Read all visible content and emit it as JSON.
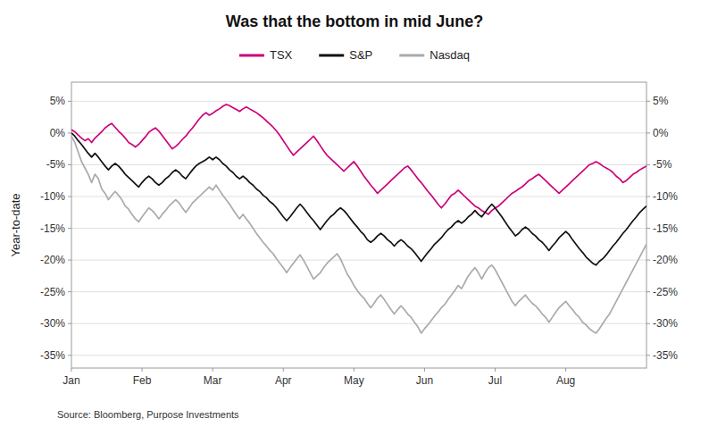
{
  "chart_data": {
    "type": "line",
    "title": "Was that the bottom in mid June?",
    "y_label": "Year-to-date",
    "annotations": [
      "Source: Bloomberg, Purpose Investments"
    ],
    "grid": true,
    "legend": "top",
    "categories": [
      "Jan",
      null,
      null,
      null,
      null,
      null,
      null,
      null,
      null,
      null,
      null,
      null,
      null,
      null,
      null,
      null,
      null,
      null,
      null,
      null,
      null,
      "Feb",
      null,
      null,
      null,
      null,
      null,
      null,
      null,
      null,
      null,
      null,
      null,
      null,
      null,
      null,
      null,
      null,
      null,
      null,
      null,
      null,
      "Mar",
      null,
      null,
      null,
      null,
      null,
      null,
      null,
      null,
      null,
      null,
      null,
      null,
      null,
      null,
      null,
      null,
      null,
      null,
      null,
      null,
      "Apr",
      null,
      null,
      null,
      null,
      null,
      null,
      null,
      null,
      null,
      null,
      null,
      null,
      null,
      null,
      null,
      null,
      null,
      null,
      null,
      null,
      "May",
      null,
      null,
      null,
      null,
      null,
      null,
      null,
      null,
      null,
      null,
      null,
      null,
      null,
      null,
      null,
      null,
      null,
      null,
      null,
      null,
      "Jun",
      null,
      null,
      null,
      null,
      null,
      null,
      null,
      null,
      null,
      null,
      null,
      null,
      null,
      null,
      null,
      null,
      null,
      null,
      null,
      null,
      "Jul",
      null,
      null,
      null,
      null,
      null,
      null,
      null,
      null,
      null,
      null,
      null,
      null,
      null,
      null,
      null,
      null,
      null,
      null,
      null,
      null,
      "Aug",
      null,
      null,
      null,
      null,
      null,
      null,
      null,
      null,
      null,
      null,
      null,
      null,
      null,
      null,
      null,
      null,
      null,
      null,
      null,
      null,
      null,
      null,
      null,
      null
    ],
    "ylim": [
      -37,
      8
    ],
    "yticks": [
      {
        "value": 5,
        "label": "5%"
      },
      {
        "value": 0,
        "label": "0%"
      },
      {
        "value": -5,
        "label": "-5%"
      },
      {
        "value": -10,
        "label": "-10%"
      },
      {
        "value": -15,
        "label": "-15%"
      },
      {
        "value": -20,
        "label": "-20%"
      },
      {
        "value": -25,
        "label": "-25%"
      },
      {
        "value": -30,
        "label": "-30%"
      },
      {
        "value": -35,
        "label": "-35%"
      }
    ],
    "y2lim": [
      -37,
      8
    ],
    "y2ticks": [
      {
        "value": 5,
        "label": "5%"
      },
      {
        "value": 0,
        "label": "0%"
      },
      {
        "value": -5,
        "label": "-5%"
      },
      {
        "value": -10,
        "label": "-10%"
      },
      {
        "value": -15,
        "label": "-15%"
      },
      {
        "value": -20,
        "label": "-20%"
      },
      {
        "value": -25,
        "label": "-25%"
      },
      {
        "value": -30,
        "label": "-30%"
      },
      {
        "value": -35,
        "label": "-35%"
      }
    ],
    "series": [
      {
        "name": "TSX",
        "color": "#cc007a",
        "values": [
          0.5,
          0.2,
          -0.3,
          -0.8,
          -1.2,
          -0.9,
          -1.5,
          -0.8,
          -0.3,
          0.2,
          0.8,
          1.2,
          1.5,
          0.9,
          0.3,
          -0.2,
          -0.8,
          -1.5,
          -1.8,
          -2.2,
          -1.8,
          -1.2,
          -0.6,
          0.1,
          0.5,
          0.8,
          0.3,
          -0.4,
          -1.1,
          -1.8,
          -2.5,
          -2.1,
          -1.6,
          -1.0,
          -0.5,
          0.2,
          0.8,
          1.5,
          2.2,
          2.8,
          3.2,
          2.8,
          3.1,
          3.5,
          3.8,
          4.2,
          4.5,
          4.3,
          4.0,
          3.7,
          3.4,
          3.8,
          4.1,
          3.8,
          3.5,
          3.2,
          2.8,
          2.4,
          1.9,
          1.4,
          0.9,
          0.3,
          -0.4,
          -1.2,
          -2.0,
          -2.8,
          -3.5,
          -3.0,
          -2.5,
          -2.0,
          -1.5,
          -1.0,
          -0.5,
          -1.2,
          -2.0,
          -2.8,
          -3.5,
          -4.0,
          -4.5,
          -5.0,
          -5.5,
          -6.0,
          -5.5,
          -5.0,
          -4.5,
          -5.2,
          -6.0,
          -6.8,
          -7.5,
          -8.2,
          -8.8,
          -9.5,
          -9.0,
          -8.5,
          -8.0,
          -7.5,
          -7.0,
          -6.5,
          -6.0,
          -5.5,
          -5.2,
          -5.8,
          -6.5,
          -7.2,
          -7.8,
          -8.5,
          -9.2,
          -9.8,
          -10.5,
          -11.2,
          -11.8,
          -11.2,
          -10.5,
          -9.8,
          -9.5,
          -9.0,
          -9.5,
          -10.0,
          -10.5,
          -11.0,
          -11.5,
          -11.8,
          -12.2,
          -12.5,
          -12.8,
          -12.2,
          -11.8,
          -11.5,
          -11.0,
          -10.5,
          -10.0,
          -9.5,
          -9.2,
          -8.8,
          -8.5,
          -8.0,
          -7.5,
          -7.2,
          -6.8,
          -6.5,
          -7.0,
          -7.5,
          -8.0,
          -8.5,
          -9.0,
          -9.5,
          -9.0,
          -8.5,
          -8.0,
          -7.5,
          -7.0,
          -6.5,
          -6.0,
          -5.5,
          -5.0,
          -4.8,
          -4.5,
          -4.8,
          -5.2,
          -5.5,
          -5.8,
          -6.2,
          -6.8,
          -7.2,
          -7.8,
          -7.5,
          -7.0,
          -6.5,
          -6.2,
          -5.8,
          -5.5,
          -5.2
        ]
      },
      {
        "name": "S&P",
        "color": "#111111",
        "values": [
          0.0,
          -0.5,
          -1.2,
          -1.8,
          -2.5,
          -3.2,
          -3.8,
          -3.2,
          -3.8,
          -4.5,
          -5.2,
          -5.8,
          -5.2,
          -4.8,
          -5.2,
          -5.8,
          -6.5,
          -7.0,
          -7.5,
          -8.0,
          -8.5,
          -7.8,
          -7.2,
          -6.8,
          -7.2,
          -7.8,
          -8.2,
          -7.8,
          -7.2,
          -6.8,
          -6.2,
          -5.8,
          -6.2,
          -6.8,
          -7.2,
          -6.5,
          -5.8,
          -5.2,
          -4.8,
          -4.5,
          -4.2,
          -3.8,
          -4.2,
          -3.8,
          -4.2,
          -4.8,
          -5.2,
          -5.8,
          -6.2,
          -6.8,
          -7.2,
          -6.8,
          -7.2,
          -7.8,
          -8.2,
          -8.8,
          -9.2,
          -9.8,
          -10.2,
          -10.8,
          -11.2,
          -11.8,
          -12.5,
          -13.2,
          -13.8,
          -13.2,
          -12.5,
          -11.8,
          -11.2,
          -11.8,
          -12.5,
          -13.2,
          -13.8,
          -14.5,
          -15.2,
          -14.5,
          -13.8,
          -13.2,
          -12.8,
          -12.2,
          -11.8,
          -12.2,
          -12.8,
          -13.5,
          -14.2,
          -14.8,
          -15.5,
          -16.0,
          -16.8,
          -17.2,
          -16.8,
          -16.2,
          -15.8,
          -16.2,
          -16.8,
          -17.2,
          -17.8,
          -17.2,
          -16.8,
          -17.2,
          -17.8,
          -18.2,
          -18.8,
          -19.5,
          -20.2,
          -19.5,
          -18.8,
          -18.2,
          -17.5,
          -17.0,
          -16.5,
          -15.8,
          -15.2,
          -14.8,
          -14.2,
          -13.8,
          -14.2,
          -13.8,
          -13.2,
          -12.8,
          -12.2,
          -12.8,
          -13.2,
          -12.5,
          -11.8,
          -11.2,
          -11.8,
          -12.5,
          -13.2,
          -14.0,
          -14.8,
          -15.5,
          -16.2,
          -15.8,
          -15.2,
          -14.8,
          -15.2,
          -15.8,
          -16.2,
          -16.8,
          -17.2,
          -17.8,
          -18.5,
          -17.8,
          -17.2,
          -16.5,
          -16.0,
          -15.5,
          -16.0,
          -16.8,
          -17.5,
          -18.2,
          -18.8,
          -19.5,
          -20.0,
          -20.5,
          -20.8,
          -20.2,
          -19.8,
          -19.2,
          -18.5,
          -17.8,
          -17.2,
          -16.5,
          -15.8,
          -15.2,
          -14.5,
          -13.8,
          -13.2,
          -12.5,
          -12.0,
          -11.5
        ]
      },
      {
        "name": "Nasdaq",
        "color": "#aaaaaa",
        "values": [
          -0.5,
          -1.5,
          -3.0,
          -4.5,
          -5.5,
          -6.5,
          -7.8,
          -6.5,
          -7.2,
          -8.8,
          -9.5,
          -10.5,
          -9.8,
          -9.2,
          -9.8,
          -10.5,
          -11.5,
          -12.0,
          -12.8,
          -13.5,
          -14.0,
          -13.2,
          -12.5,
          -11.8,
          -12.2,
          -12.8,
          -13.5,
          -12.8,
          -12.2,
          -11.5,
          -11.0,
          -10.5,
          -11.0,
          -11.8,
          -12.5,
          -11.8,
          -11.0,
          -10.5,
          -10.0,
          -9.5,
          -9.0,
          -8.5,
          -9.0,
          -8.2,
          -9.0,
          -9.8,
          -10.5,
          -11.2,
          -12.0,
          -12.8,
          -13.5,
          -12.8,
          -13.5,
          -14.2,
          -15.0,
          -15.8,
          -16.5,
          -17.2,
          -17.8,
          -18.5,
          -19.0,
          -19.8,
          -20.5,
          -21.2,
          -22.0,
          -21.2,
          -20.5,
          -19.8,
          -19.2,
          -20.0,
          -21.0,
          -22.0,
          -23.0,
          -22.5,
          -22.0,
          -21.2,
          -20.5,
          -20.0,
          -19.5,
          -19.0,
          -19.8,
          -21.0,
          -22.2,
          -23.0,
          -24.0,
          -24.8,
          -25.5,
          -26.0,
          -26.8,
          -27.5,
          -26.8,
          -26.0,
          -25.5,
          -26.2,
          -27.0,
          -27.8,
          -28.5,
          -27.8,
          -27.2,
          -27.8,
          -28.5,
          -29.0,
          -29.8,
          -30.5,
          -31.5,
          -30.8,
          -30.2,
          -29.5,
          -28.8,
          -28.2,
          -27.5,
          -27.0,
          -26.2,
          -25.5,
          -24.8,
          -24.0,
          -24.5,
          -23.5,
          -22.5,
          -21.8,
          -21.2,
          -22.0,
          -23.0,
          -22.0,
          -21.2,
          -20.8,
          -21.5,
          -22.5,
          -23.5,
          -24.5,
          -25.5,
          -26.5,
          -27.2,
          -26.5,
          -26.0,
          -25.5,
          -26.2,
          -26.8,
          -27.2,
          -27.8,
          -28.5,
          -29.0,
          -29.8,
          -29.0,
          -28.2,
          -27.5,
          -27.0,
          -26.5,
          -27.2,
          -27.8,
          -28.5,
          -29.0,
          -29.8,
          -30.2,
          -30.8,
          -31.2,
          -31.5,
          -30.8,
          -30.0,
          -29.2,
          -28.5,
          -27.5,
          -26.5,
          -25.5,
          -24.5,
          -23.5,
          -22.5,
          -21.5,
          -20.5,
          -19.5,
          -18.5,
          -17.5
        ]
      }
    ]
  }
}
